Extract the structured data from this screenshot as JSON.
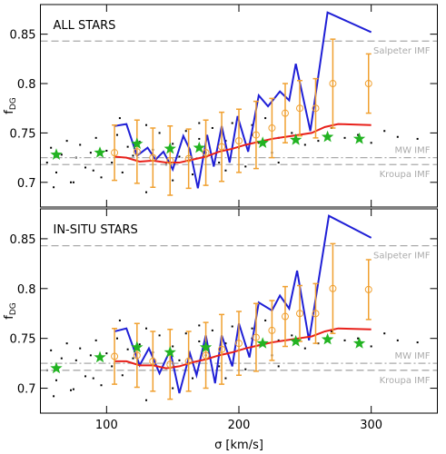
{
  "chart_data": [
    {
      "type": "scatter",
      "title": "ALL STARS",
      "ylabel_main": "f",
      "ylabel_sub": "DG",
      "xlim": [
        50,
        350
      ],
      "ylim": [
        0.675,
        0.88
      ],
      "xticks": [
        100,
        200,
        300
      ],
      "yticks": [
        0.7,
        0.75,
        0.8,
        0.85
      ],
      "reference_lines": [
        {
          "value": 0.843,
          "label": "Salpeter IMF",
          "style": "dashed"
        },
        {
          "value": 0.725,
          "label": "MW IMF",
          "style": "dashdot"
        },
        {
          "value": 0.718,
          "label": "Kroupa IMF",
          "style": "dashed"
        }
      ],
      "series": [
        {
          "kind": "points",
          "color": "#000000",
          "x": [
            55,
            58,
            62,
            66,
            70,
            73,
            77,
            80,
            84,
            88,
            92,
            96,
            100,
            104,
            108,
            112,
            116,
            120,
            125,
            130,
            135,
            140,
            145,
            150,
            155,
            160,
            165,
            170,
            175,
            180,
            185,
            190,
            195,
            200,
            205,
            210,
            215,
            220,
            225,
            230,
            240,
            250,
            260,
            270,
            280,
            290,
            300,
            310,
            320,
            335,
            60,
            75,
            90,
            110,
            130,
            150,
            170,
            190,
            210,
            230
          ],
          "values": [
            0.72,
            0.735,
            0.71,
            0.728,
            0.742,
            0.7,
            0.725,
            0.738,
            0.715,
            0.73,
            0.745,
            0.705,
            0.732,
            0.72,
            0.748,
            0.71,
            0.736,
            0.727,
            0.741,
            0.69,
            0.733,
            0.75,
            0.718,
            0.739,
            0.726,
            0.752,
            0.708,
            0.744,
            0.73,
            0.755,
            0.72,
            0.742,
            0.76,
            0.735,
            0.716,
            0.748,
            0.74,
            0.765,
            0.73,
            0.745,
            0.75,
            0.738,
            0.742,
            0.755,
            0.745,
            0.748,
            0.74,
            0.752,
            0.746,
            0.744,
            0.695,
            0.7,
            0.712,
            0.765,
            0.758,
            0.702,
            0.76,
            0.712,
            0.758,
            0.72
          ]
        },
        {
          "kind": "line",
          "color": "#1f1fd6",
          "x": [
            106,
            115,
            123,
            131,
            137,
            143,
            150,
            158,
            163,
            169,
            176,
            181,
            187,
            193,
            199,
            207,
            215,
            222,
            231,
            238,
            243,
            254,
            267,
            300
          ],
          "values": [
            0.757,
            0.759,
            0.727,
            0.735,
            0.723,
            0.731,
            0.713,
            0.747,
            0.733,
            0.694,
            0.748,
            0.716,
            0.757,
            0.72,
            0.767,
            0.731,
            0.788,
            0.777,
            0.792,
            0.783,
            0.82,
            0.752,
            0.872,
            0.852
          ]
        },
        {
          "kind": "line",
          "color": "#e8201a",
          "x": [
            106,
            115,
            125,
            135,
            145,
            155,
            165,
            175,
            185,
            195,
            205,
            215,
            225,
            235,
            245,
            255,
            265,
            275,
            300
          ],
          "values": [
            0.726,
            0.725,
            0.721,
            0.722,
            0.72,
            0.72,
            0.723,
            0.726,
            0.731,
            0.734,
            0.738,
            0.741,
            0.744,
            0.746,
            0.748,
            0.75,
            0.756,
            0.759,
            0.758
          ]
        },
        {
          "kind": "errorbar",
          "color": "#f0a030",
          "x": [
            106,
            123,
            135,
            148,
            162,
            175,
            187,
            200,
            213,
            225,
            235,
            246,
            258,
            271,
            298
          ],
          "values": [
            0.73,
            0.731,
            0.725,
            0.722,
            0.724,
            0.73,
            0.736,
            0.742,
            0.748,
            0.755,
            0.77,
            0.775,
            0.775,
            0.8,
            0.8
          ],
          "errors": [
            0.028,
            0.032,
            0.03,
            0.035,
            0.03,
            0.033,
            0.035,
            0.032,
            0.034,
            0.03,
            0.03,
            0.028,
            0.03,
            0.045,
            0.03
          ]
        },
        {
          "kind": "stars",
          "color": "#22b322",
          "x": [
            62,
            95,
            123,
            148,
            170,
            218,
            243,
            267,
            291
          ],
          "values": [
            0.728,
            0.73,
            0.739,
            0.734,
            0.735,
            0.74,
            0.743,
            0.746,
            0.744
          ]
        }
      ]
    },
    {
      "type": "scatter",
      "title": "IN-SITU STARS",
      "ylabel_main": "f",
      "ylabel_sub": "DG",
      "xlabel": "σ [km/s]",
      "xlim": [
        50,
        350
      ],
      "ylim": [
        0.675,
        0.88
      ],
      "xticks": [
        100,
        200,
        300
      ],
      "yticks": [
        0.7,
        0.75,
        0.8,
        0.85
      ],
      "reference_lines": [
        {
          "value": 0.843,
          "label": "Salpeter IMF",
          "style": "dashed"
        },
        {
          "value": 0.725,
          "label": "MW IMF",
          "style": "dashdot"
        },
        {
          "value": 0.718,
          "label": "Kroupa IMF",
          "style": "dashed"
        }
      ],
      "series": [
        {
          "kind": "points",
          "color": "#000000",
          "x": [
            55,
            58,
            62,
            66,
            70,
            73,
            77,
            80,
            84,
            88,
            92,
            96,
            100,
            104,
            108,
            112,
            116,
            120,
            125,
            130,
            135,
            140,
            145,
            150,
            155,
            160,
            165,
            170,
            175,
            180,
            185,
            190,
            195,
            200,
            205,
            210,
            215,
            220,
            225,
            230,
            240,
            250,
            260,
            270,
            280,
            290,
            300,
            310,
            320,
            335,
            60,
            75,
            90,
            110,
            130,
            150,
            170,
            190,
            210,
            230
          ],
          "values": [
            0.718,
            0.738,
            0.708,
            0.73,
            0.745,
            0.698,
            0.728,
            0.74,
            0.712,
            0.733,
            0.748,
            0.703,
            0.735,
            0.722,
            0.75,
            0.713,
            0.739,
            0.73,
            0.744,
            0.688,
            0.736,
            0.753,
            0.72,
            0.742,
            0.728,
            0.755,
            0.71,
            0.747,
            0.733,
            0.758,
            0.722,
            0.745,
            0.762,
            0.738,
            0.719,
            0.75,
            0.743,
            0.768,
            0.733,
            0.748,
            0.753,
            0.74,
            0.745,
            0.757,
            0.748,
            0.75,
            0.742,
            0.755,
            0.748,
            0.746,
            0.692,
            0.699,
            0.71,
            0.768,
            0.76,
            0.7,
            0.763,
            0.71,
            0.76,
            0.722
          ]
        },
        {
          "kind": "line",
          "color": "#1f1fd6",
          "x": [
            106,
            115,
            125,
            132,
            140,
            148,
            155,
            163,
            168,
            175,
            182,
            187,
            195,
            200,
            208,
            215,
            225,
            231,
            238,
            244,
            253,
            268,
            300
          ],
          "values": [
            0.757,
            0.76,
            0.723,
            0.74,
            0.715,
            0.738,
            0.695,
            0.735,
            0.713,
            0.753,
            0.705,
            0.753,
            0.722,
            0.765,
            0.731,
            0.786,
            0.778,
            0.793,
            0.78,
            0.818,
            0.748,
            0.873,
            0.851
          ]
        },
        {
          "kind": "line",
          "color": "#e8201a",
          "x": [
            106,
            115,
            125,
            135,
            145,
            155,
            165,
            175,
            185,
            195,
            205,
            215,
            225,
            235,
            245,
            255,
            265,
            275,
            300
          ],
          "values": [
            0.727,
            0.727,
            0.723,
            0.723,
            0.72,
            0.722,
            0.726,
            0.729,
            0.733,
            0.736,
            0.74,
            0.743,
            0.746,
            0.748,
            0.75,
            0.752,
            0.757,
            0.76,
            0.759
          ]
        },
        {
          "kind": "errorbar",
          "color": "#f0a030",
          "x": [
            106,
            123,
            135,
            148,
            162,
            175,
            187,
            200,
            213,
            225,
            235,
            246,
            258,
            271,
            298
          ],
          "values": [
            0.732,
            0.733,
            0.727,
            0.724,
            0.727,
            0.733,
            0.739,
            0.745,
            0.751,
            0.758,
            0.772,
            0.775,
            0.775,
            0.8,
            0.799
          ],
          "errors": [
            0.028,
            0.032,
            0.03,
            0.035,
            0.03,
            0.033,
            0.035,
            0.032,
            0.034,
            0.03,
            0.03,
            0.028,
            0.03,
            0.045,
            0.03
          ]
        },
        {
          "kind": "stars",
          "color": "#22b322",
          "x": [
            62,
            95,
            123,
            148,
            175,
            218,
            243,
            267,
            291
          ],
          "values": [
            0.72,
            0.731,
            0.741,
            0.736,
            0.741,
            0.745,
            0.747,
            0.749,
            0.745
          ]
        }
      ]
    }
  ]
}
